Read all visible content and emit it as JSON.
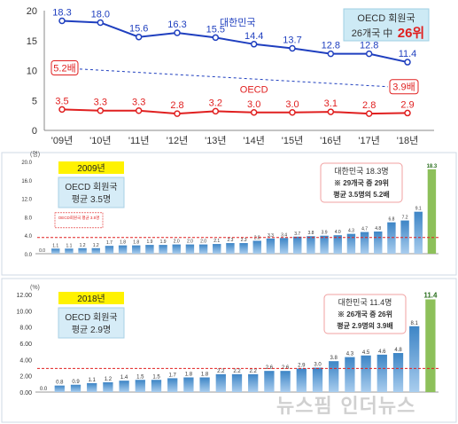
{
  "chart_data": [
    {
      "type": "line",
      "categories": [
        "'09년",
        "'10년",
        "'11년",
        "'12년",
        "'13년",
        "'14년",
        "'15년",
        "'16년",
        "'17년",
        "'18년"
      ],
      "ylim": [
        0,
        20
      ],
      "yticks": [
        "0",
        "5",
        "10",
        "15",
        "20"
      ],
      "series": [
        {
          "name": "대한민국",
          "color": "#1f3fbf",
          "values": [
            18.3,
            18.0,
            15.6,
            16.3,
            15.5,
            14.4,
            13.7,
            12.8,
            12.8,
            11.4
          ],
          "labels": [
            "18.3",
            "18.0",
            "15.6",
            "16.3",
            "15.5",
            "14.4",
            "13.7",
            "12.8",
            "12.8",
            "11.4"
          ]
        },
        {
          "name": "OECD",
          "color": "#e02020",
          "values": [
            3.5,
            3.3,
            3.3,
            2.8,
            3.2,
            3.0,
            3.0,
            3.1,
            2.8,
            2.9
          ],
          "labels": [
            "3.5",
            "3.3",
            "3.3",
            "2.8",
            "3.2",
            "3.0",
            "3.0",
            "3.1",
            "2.8",
            "2.9"
          ]
        }
      ],
      "annotations": {
        "start_ratio": "5.2배",
        "end_ratio": "3.9배"
      },
      "infobox": {
        "line1": "OECD 회원국",
        "line2a": "26개국 中",
        "line2b": "26위"
      },
      "grid": false
    },
    {
      "type": "bar",
      "unit": "(명)",
      "ylim": [
        0,
        20
      ],
      "yticks": [
        "0.0",
        "4.0",
        "8.0",
        "12.0",
        "16.0",
        "20.0"
      ],
      "values": [
        0.0,
        1.1,
        1.1,
        1.2,
        1.2,
        1.7,
        1.8,
        1.8,
        1.9,
        1.9,
        2.0,
        2.0,
        2.0,
        2.1,
        2.3,
        2.3,
        2.8,
        3.3,
        3.4,
        3.7,
        3.8,
        3.9,
        4.0,
        4.3,
        4.7,
        4.8,
        6.8,
        7.2,
        9.1,
        18.3
      ],
      "labels": [
        "0.0",
        "1.1",
        "1.1",
        "1.2",
        "1.2",
        "1.7",
        "1.8",
        "1.8",
        "1.9",
        "1.9",
        "2.0",
        "2.0",
        "2.0",
        "2.1",
        "2.3",
        "2.3",
        "2.8",
        "3.3",
        "3.4",
        "3.7",
        "3.8",
        "3.9",
        "4.0",
        "4.3",
        "4.7",
        "4.8",
        "6.8",
        "7.2",
        "9.1",
        "18.3"
      ],
      "highlight_index": 29,
      "average": 3.5,
      "average_label": "OECD회원국 평균 3.5명",
      "year": "2009년",
      "oecd_box": [
        "OECD 회원국",
        "평균 3.5명"
      ],
      "korea_box": [
        "대한민국 18.3명",
        "※ 29개국 중 29위",
        "평균 3.5명의 5.2배"
      ]
    },
    {
      "type": "bar",
      "unit": "(%)",
      "ylim": [
        0,
        12
      ],
      "yticks": [
        "0.00",
        "2.00",
        "4.00",
        "6.00",
        "8.00",
        "10.00",
        "12.00"
      ],
      "values": [
        0.0,
        0.8,
        0.9,
        1.1,
        1.2,
        1.4,
        1.5,
        1.5,
        1.7,
        1.8,
        1.8,
        2.2,
        2.2,
        2.2,
        2.6,
        2.6,
        2.9,
        3.0,
        3.8,
        4.3,
        4.5,
        4.6,
        4.8,
        8.1,
        11.4
      ],
      "labels": [
        "0.0",
        "0.8",
        "0.9",
        "1.1",
        "1.2",
        "1.4",
        "1.5",
        "1.5",
        "1.7",
        "1.8",
        "1.8",
        "2.2",
        "2.2",
        "2.2",
        "2.6",
        "2.6",
        "2.9",
        "3.0",
        "3.8",
        "4.3",
        "4.5",
        "4.6",
        "4.8",
        "8.1",
        "11.4"
      ],
      "highlight_index": 24,
      "average": 2.9,
      "year": "2018년",
      "oecd_box": [
        "OECD 회원국",
        "평균 2.9명"
      ],
      "korea_box": [
        "대한민국 11.4명",
        "※ 26개국 중 26위",
        "평균 2.9명의 3.9배"
      ]
    }
  ],
  "watermark": "뉴스핌 인더뉴스"
}
